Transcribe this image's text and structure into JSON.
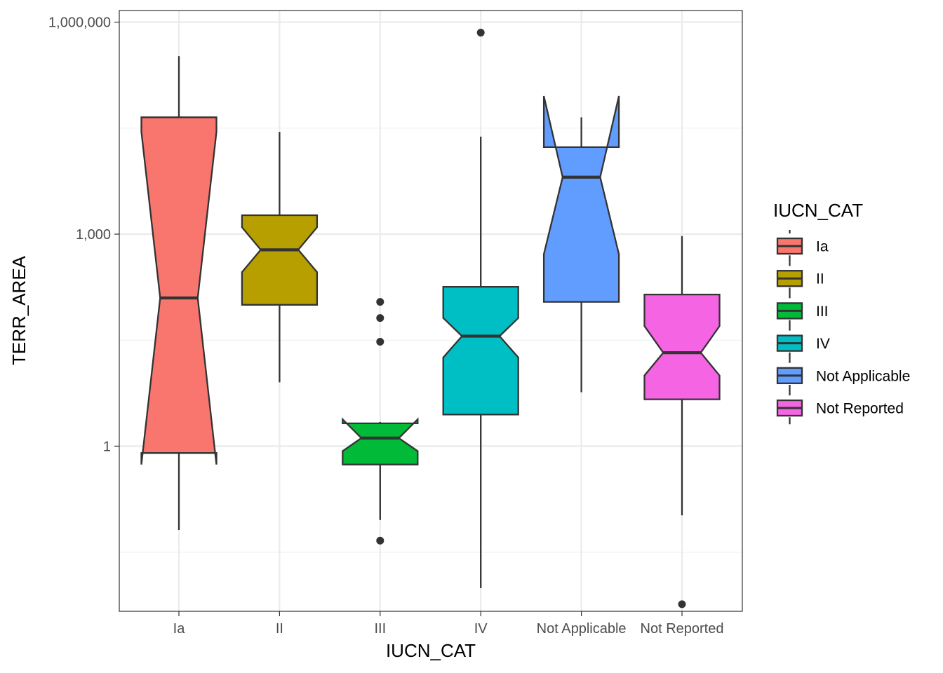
{
  "chart_data": {
    "type": "boxplot",
    "notched": true,
    "xlabel": "IUCN_CAT",
    "ylabel": "TERR_AREA",
    "y_scale": "log10",
    "ylim": [
      0.0046,
      1460000
    ],
    "y_major_ticks": [
      1,
      1000,
      1000000
    ],
    "y_tick_labels": [
      "1",
      "1,000",
      "1,000,000"
    ],
    "y_minor_ticks": [
      0.0316,
      31.6,
      31600
    ],
    "grid": true,
    "legend": {
      "title": "IUCN_CAT",
      "position": "right"
    },
    "categories": [
      "Ia",
      "II",
      "III",
      "IV",
      "Not Applicable",
      "Not Reported"
    ],
    "series": [
      {
        "name": "Ia",
        "color": "#F8766D",
        "whisker_low": 0.065,
        "q1": 0.8,
        "median": 125,
        "q3": 45000,
        "whisker_high": 330000,
        "notch_low": 0.55,
        "notch_high": 28000,
        "outliers": []
      },
      {
        "name": "II",
        "color": "#B79F00",
        "whisker_low": 8,
        "q1": 100,
        "median": 600,
        "q3": 1850,
        "whisker_high": 28000,
        "notch_low": 290,
        "notch_high": 1250,
        "outliers": []
      },
      {
        "name": "III",
        "color": "#00BA38",
        "whisker_low": 0.09,
        "q1": 0.55,
        "median": 1.3,
        "q3": 2.1,
        "whisker_high": 2.2,
        "notch_low": 0.85,
        "notch_high": 2.4,
        "outliers": [
          0.046,
          30,
          65,
          110
        ]
      },
      {
        "name": "IV",
        "color": "#00BFC4",
        "whisker_low": 0.0098,
        "q1": 2.8,
        "median": 36,
        "q3": 180,
        "whisker_high": 24000,
        "notch_low": 18,
        "notch_high": 65,
        "outliers": [
          710000
        ]
      },
      {
        "name": "Not Applicable",
        "color": "#619CFF",
        "whisker_low": 5.8,
        "q1": 110,
        "median": 6400,
        "q3": 17000,
        "whisker_high": 45000,
        "notch_low": 520,
        "notch_high": 90000,
        "outliers": []
      },
      {
        "name": "Not Reported",
        "color": "#F564E3",
        "whisker_low": 0.105,
        "q1": 4.6,
        "median": 21,
        "q3": 140,
        "whisker_high": 940,
        "notch_low": 10,
        "notch_high": 50,
        "outliers": [
          0.0058
        ]
      }
    ]
  }
}
